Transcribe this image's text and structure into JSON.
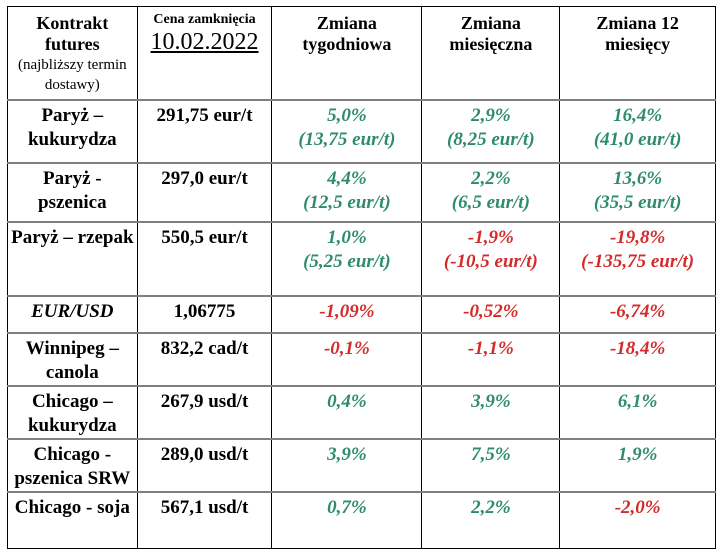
{
  "header": {
    "col1_title": "Kontrakt futures",
    "col1_sub": "(najbliższy termin dostawy)",
    "col2_title": "Cena zamknięcia",
    "col2_date": "10.02.2022",
    "col3": "Zmiana tygodniowa",
    "col4": "Zmiana miesięczna",
    "col5": "Zmiana 12 miesięcy"
  },
  "colors": {
    "positive": "#2e8b6e",
    "negative": "#d42a2a"
  },
  "rows": [
    {
      "name": "Paryż – kukurydza",
      "price": "291,75 eur/t",
      "week": "5,0%",
      "week2": "(13,75 eur/t)",
      "month": "2,9%",
      "month2": "(8,25 eur/t)",
      "year": "16,4%",
      "year2": "(41,0 eur/t)"
    },
    {
      "name": "Paryż - pszenica",
      "price": "297,0 eur/t",
      "week": "4,4%",
      "week2": "(12,5 eur/t)",
      "month": "2,2%",
      "month2": "(6,5 eur/t)",
      "year": "13,6%",
      "year2": "(35,5 eur/t)"
    },
    {
      "name": "Paryż – rzepak",
      "price": "550,5 eur/t",
      "week": "1,0%",
      "week2": "(5,25 eur/t)",
      "month": "-1,9%",
      "month2": "(-10,5 eur/t)",
      "year": "-19,8%",
      "year2": "(-135,75 eur/t)"
    },
    {
      "name": "EUR/USD",
      "price": "1,06775",
      "week": "-1,09%",
      "month": "-0,52%",
      "year": "-6,74%"
    },
    {
      "name": "Winnipeg – canola",
      "price": "832,2 cad/t",
      "week": "-0,1%",
      "month": "-1,1%",
      "year": "-18,4%"
    },
    {
      "name": "Chicago – kukurydza",
      "price": "267,9 usd/t",
      "week": "0,4%",
      "month": "3,9%",
      "year": "6,1%"
    },
    {
      "name": "Chicago - pszenica SRW",
      "price": "289,0 usd/t",
      "week": "3,9%",
      "month": "7,5%",
      "year": "1,9%"
    },
    {
      "name": "Chicago - soja",
      "price": "567,1 usd/t",
      "week": "0,7%",
      "month": "2,2%",
      "year": "-2,0%"
    }
  ]
}
